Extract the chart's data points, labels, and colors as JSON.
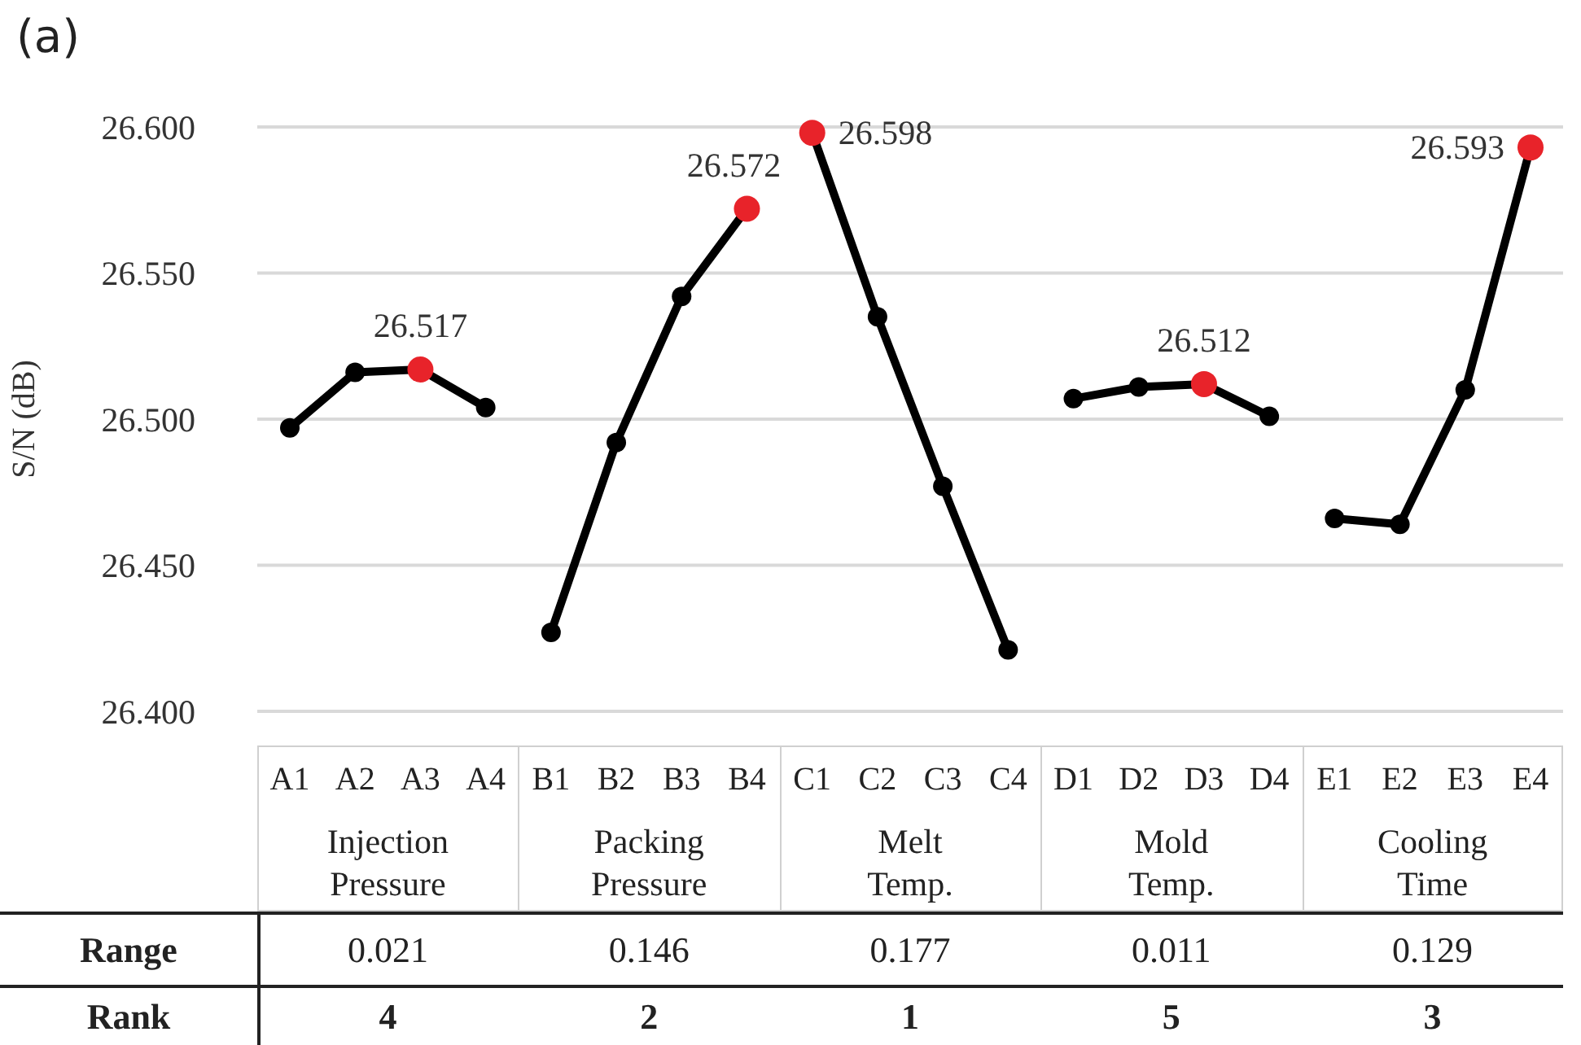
{
  "chart_data": {
    "type": "line",
    "title": "(a)",
    "ylabel": "S/N (dB)",
    "categories": [
      "A1",
      "A2",
      "A3",
      "A4",
      "B1",
      "B2",
      "B3",
      "B4",
      "C1",
      "C2",
      "C3",
      "C4",
      "D1",
      "D2",
      "D3",
      "D4",
      "E1",
      "E2",
      "E3",
      "E4"
    ],
    "series": [
      {
        "color": "#000000",
        "values": [
          26.497,
          26.516,
          26.517,
          26.504,
          null,
          null,
          null,
          null,
          null,
          null,
          null,
          null,
          null,
          null,
          null,
          null,
          null,
          null,
          null,
          null
        ],
        "colors": [
          "#000000",
          "#000000",
          "#e8232a",
          "#000000",
          null,
          null,
          null,
          null,
          null,
          null,
          null,
          null,
          null,
          null,
          null,
          null,
          null,
          null,
          null,
          null
        ],
        "value_labels": [
          null,
          null,
          "26.517",
          null,
          null,
          null,
          null,
          null,
          null,
          null,
          null,
          null,
          null,
          null,
          null,
          null,
          null,
          null,
          null,
          null
        ]
      },
      {
        "color": "#000000",
        "values": [
          null,
          null,
          null,
          null,
          26.427,
          26.492,
          26.542,
          26.572,
          null,
          null,
          null,
          null,
          null,
          null,
          null,
          null,
          null,
          null,
          null,
          null
        ],
        "colors": [
          null,
          null,
          null,
          null,
          "#000000",
          "#000000",
          "#000000",
          "#e8232a",
          null,
          null,
          null,
          null,
          null,
          null,
          null,
          null,
          null,
          null,
          null,
          null
        ],
        "value_labels": [
          null,
          null,
          null,
          null,
          null,
          null,
          null,
          "26.572",
          null,
          null,
          null,
          null,
          null,
          null,
          null,
          null,
          null,
          null,
          null,
          null
        ]
      },
      {
        "color": "#000000",
        "values": [
          null,
          null,
          null,
          null,
          null,
          null,
          null,
          null,
          26.598,
          26.535,
          26.477,
          26.421,
          null,
          null,
          null,
          null,
          null,
          null,
          null,
          null
        ],
        "colors": [
          null,
          null,
          null,
          null,
          null,
          null,
          null,
          null,
          "#e8232a",
          "#000000",
          "#000000",
          "#000000",
          null,
          null,
          null,
          null,
          null,
          null,
          null,
          null
        ],
        "value_labels": [
          null,
          null,
          null,
          null,
          null,
          null,
          null,
          null,
          "26.598",
          null,
          null,
          null,
          null,
          null,
          null,
          null,
          null,
          null,
          null,
          null
        ]
      },
      {
        "color": "#000000",
        "values": [
          null,
          null,
          null,
          null,
          null,
          null,
          null,
          null,
          null,
          null,
          null,
          null,
          26.507,
          26.511,
          26.512,
          26.501,
          null,
          null,
          null,
          null
        ],
        "colors": [
          null,
          null,
          null,
          null,
          null,
          null,
          null,
          null,
          null,
          null,
          null,
          null,
          "#000000",
          "#000000",
          "#e8232a",
          "#000000",
          null,
          null,
          null,
          null
        ],
        "value_labels": [
          null,
          null,
          null,
          null,
          null,
          null,
          null,
          null,
          null,
          null,
          null,
          null,
          null,
          null,
          "26.512",
          null,
          null,
          null,
          null,
          null
        ]
      },
      {
        "color": "#000000",
        "values": [
          null,
          null,
          null,
          null,
          null,
          null,
          null,
          null,
          null,
          null,
          null,
          null,
          null,
          null,
          null,
          null,
          26.466,
          26.464,
          26.51,
          26.593
        ],
        "colors": [
          null,
          null,
          null,
          null,
          null,
          null,
          null,
          null,
          null,
          null,
          null,
          null,
          null,
          null,
          null,
          null,
          "#000000",
          "#000000",
          "#000000",
          "#e8232a"
        ],
        "value_labels": [
          null,
          null,
          null,
          null,
          null,
          null,
          null,
          null,
          null,
          null,
          null,
          null,
          null,
          null,
          null,
          null,
          null,
          null,
          null,
          "26.593"
        ]
      }
    ],
    "ylim": [
      26.4,
      26.6
    ],
    "yticks": [
      {
        "value": 26.4,
        "label": "26.400"
      },
      {
        "value": 26.45,
        "label": "26.450"
      },
      {
        "value": 26.5,
        "label": "26.500"
      },
      {
        "value": 26.55,
        "label": "26.550"
      },
      {
        "value": 26.6,
        "label": "26.600"
      }
    ],
    "grid": "y",
    "marker": "circle",
    "annotations": [
      "Injection Pressure",
      "Packing Pressure",
      "Melt Temp.",
      "Mold Temp.",
      "Cooling Time",
      "Range",
      "0.021",
      "0.146",
      "0.177",
      "0.011",
      "0.129",
      "Rank",
      "4",
      "2",
      "1",
      "5",
      "3"
    ]
  }
}
